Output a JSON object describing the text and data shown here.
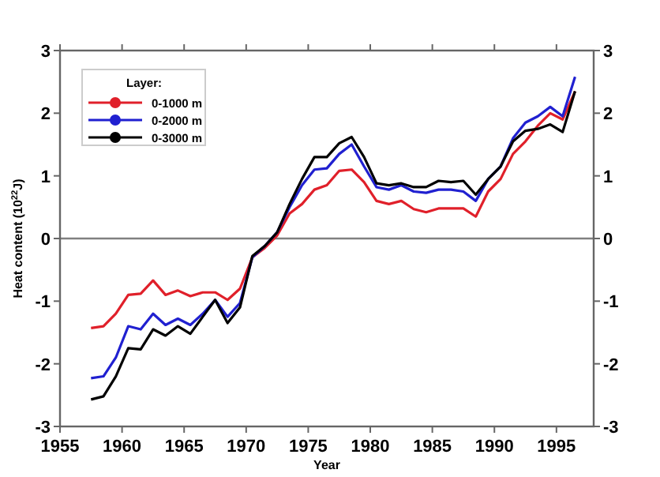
{
  "chart_data": {
    "type": "line",
    "xlabel": "Year",
    "ylabel": "Heat content (10$^{22}$J)",
    "legend_title": "Layer:",
    "legend": "top left",
    "x": [
      1957.5,
      1958.5,
      1959.5,
      1960.5,
      1961.5,
      1962.5,
      1963.5,
      1964.5,
      1965.5,
      1966.5,
      1967.5,
      1968.5,
      1969.5,
      1970.5,
      1971.5,
      1972.5,
      1973.5,
      1974.5,
      1975.5,
      1976.5,
      1977.5,
      1978.5,
      1979.5,
      1980.5,
      1981.5,
      1982.5,
      1983.5,
      1984.5,
      1985.5,
      1986.5,
      1987.5,
      1988.5,
      1989.5,
      1990.5,
      1991.5,
      1992.5,
      1993.5,
      1994.5,
      1995.5,
      1996.5
    ],
    "series": [
      {
        "name": "0-1000 m",
        "color": "#e0202a",
        "values": [
          -1.43,
          -1.4,
          -1.2,
          -0.9,
          -0.88,
          -0.67,
          -0.9,
          -0.83,
          -0.92,
          -0.86,
          -0.86,
          -0.98,
          -0.8,
          -0.3,
          -0.15,
          0.05,
          0.4,
          0.55,
          0.78,
          0.85,
          1.08,
          1.1,
          0.9,
          0.6,
          0.55,
          0.6,
          0.47,
          0.42,
          0.48,
          0.48,
          0.48,
          0.35,
          0.75,
          0.95,
          1.35,
          1.55,
          1.8,
          2.0,
          1.9,
          2.35
        ]
      },
      {
        "name": "0-2000 m",
        "color": "#2020d0",
        "values": [
          -2.23,
          -2.2,
          -1.9,
          -1.4,
          -1.45,
          -1.2,
          -1.38,
          -1.28,
          -1.38,
          -1.2,
          -0.98,
          -1.25,
          -1.03,
          -0.3,
          -0.12,
          0.1,
          0.5,
          0.85,
          1.1,
          1.12,
          1.35,
          1.5,
          1.15,
          0.82,
          0.78,
          0.85,
          0.75,
          0.73,
          0.78,
          0.78,
          0.75,
          0.6,
          0.95,
          1.15,
          1.6,
          1.85,
          1.95,
          2.1,
          1.95,
          2.58
        ]
      },
      {
        "name": "0-3000 m",
        "color": "#000000",
        "values": [
          -2.57,
          -2.52,
          -2.2,
          -1.75,
          -1.77,
          -1.45,
          -1.55,
          -1.4,
          -1.52,
          -1.25,
          -0.98,
          -1.35,
          -1.1,
          -0.28,
          -0.12,
          0.1,
          0.55,
          0.95,
          1.3,
          1.3,
          1.52,
          1.62,
          1.3,
          0.88,
          0.85,
          0.88,
          0.82,
          0.82,
          0.92,
          0.9,
          0.92,
          0.7,
          0.95,
          1.15,
          1.55,
          1.72,
          1.75,
          1.82,
          1.7,
          2.35
        ]
      }
    ],
    "xlim": [
      1955,
      1998
    ],
    "xticks": [
      1955,
      1960,
      1965,
      1970,
      1975,
      1980,
      1985,
      1990,
      1995
    ],
    "ylim": [
      -3,
      3
    ],
    "yticks": [
      -3,
      -2,
      -1,
      0,
      1,
      2,
      3
    ],
    "y2lim": [
      -3,
      3
    ],
    "y2ticks": [
      -3,
      -2,
      -1,
      0,
      1,
      2,
      3
    ],
    "ref_lines": [
      {
        "axis": "y",
        "value": 0,
        "color": "#808080"
      }
    ],
    "grid": false
  }
}
